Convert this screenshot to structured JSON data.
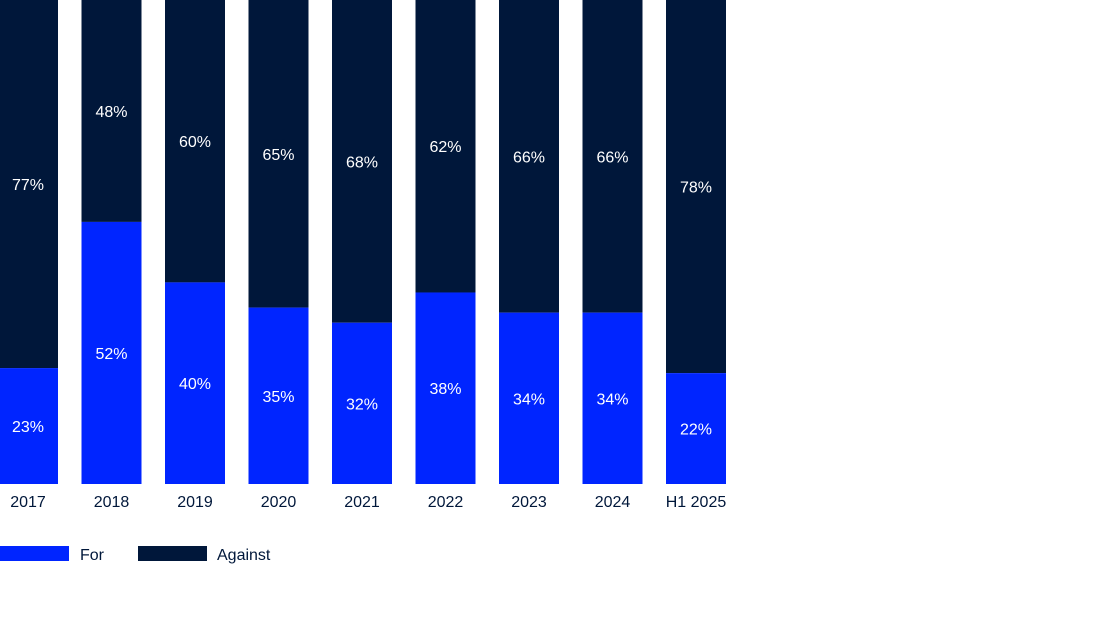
{
  "colors": {
    "for": "#0025ff",
    "against": "#00173a",
    "label_on_bar": "#ffffff",
    "axis_text": "#00173a",
    "background": "#ffffff"
  },
  "chart_data": {
    "type": "bar",
    "stacked": true,
    "categories": [
      "2017",
      "2018",
      "2019",
      "2020",
      "2021",
      "2022",
      "2023",
      "2024",
      "H1 2025"
    ],
    "series": [
      {
        "name": "For",
        "values": [
          23,
          52,
          40,
          35,
          32,
          38,
          34,
          34,
          22
        ],
        "labels": [
          "23%",
          "52%",
          "40%",
          "35%",
          "32%",
          "38%",
          "34%",
          "34%",
          "22%"
        ]
      },
      {
        "name": "Against",
        "values": [
          77,
          48,
          60,
          65,
          68,
          62,
          66,
          66,
          78
        ],
        "labels": [
          "77%",
          "48%",
          "60%",
          "65%",
          "68%",
          "62%",
          "66%",
          "66%",
          "78%"
        ]
      }
    ],
    "ylim": [
      0,
      100
    ],
    "grid": false,
    "legend_position": "bottom-left"
  }
}
